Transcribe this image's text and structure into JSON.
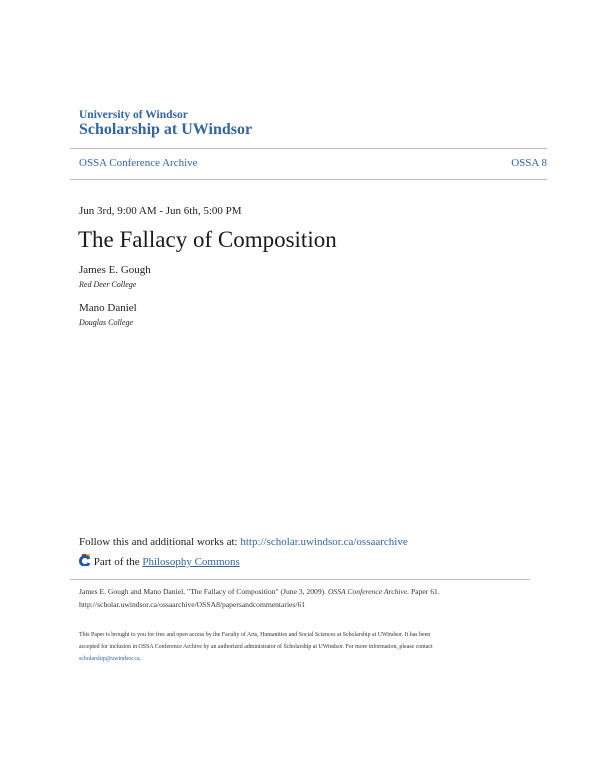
{
  "header": {
    "institution": "University of Windsor",
    "repository": "Scholarship at UWindsor"
  },
  "nav": {
    "collection": "OSSA Conference Archive",
    "series": "OSSA 8"
  },
  "event": {
    "date": "Jun 3rd, 9:00 AM - Jun 6th, 5:00 PM"
  },
  "title": "The Fallacy of Composition",
  "authors": [
    {
      "name": "James E. Gough",
      "affiliation": "Red Deer College"
    },
    {
      "name": "Mano Daniel",
      "affiliation": "Douglas College"
    }
  ],
  "follow": {
    "label": "Follow this and additional works at: ",
    "url": "http://scholar.uwindsor.ca/ossaarchive"
  },
  "part_of": {
    "label": "Part of the ",
    "link": "Philosophy Commons",
    "icon": "bepress-commons-icon"
  },
  "citation": {
    "line1_prefix": "James E. Gough and Mano Daniel, \"The Fallacy of Composition\" (June 3, 2009). ",
    "journal": "OSSA Conference Archive.",
    "line1_suffix": " Paper 61.",
    "line2": "http://scholar.uwindsor.ca/ossaarchive/OSSA8/papersandcommentaries/61"
  },
  "notice": {
    "line1": "This Paper is brought to you for free and open access by the Faculty of Arts, Humanities and Social Sciences at Scholarship at UWindsor. It has been",
    "line2": "accepted for inclusion in OSSA Conference Archive by an authorized administrator of Scholarship at UWindsor. For more information, please contact",
    "email": "scholarship@uwindsor.ca",
    "end": "."
  }
}
